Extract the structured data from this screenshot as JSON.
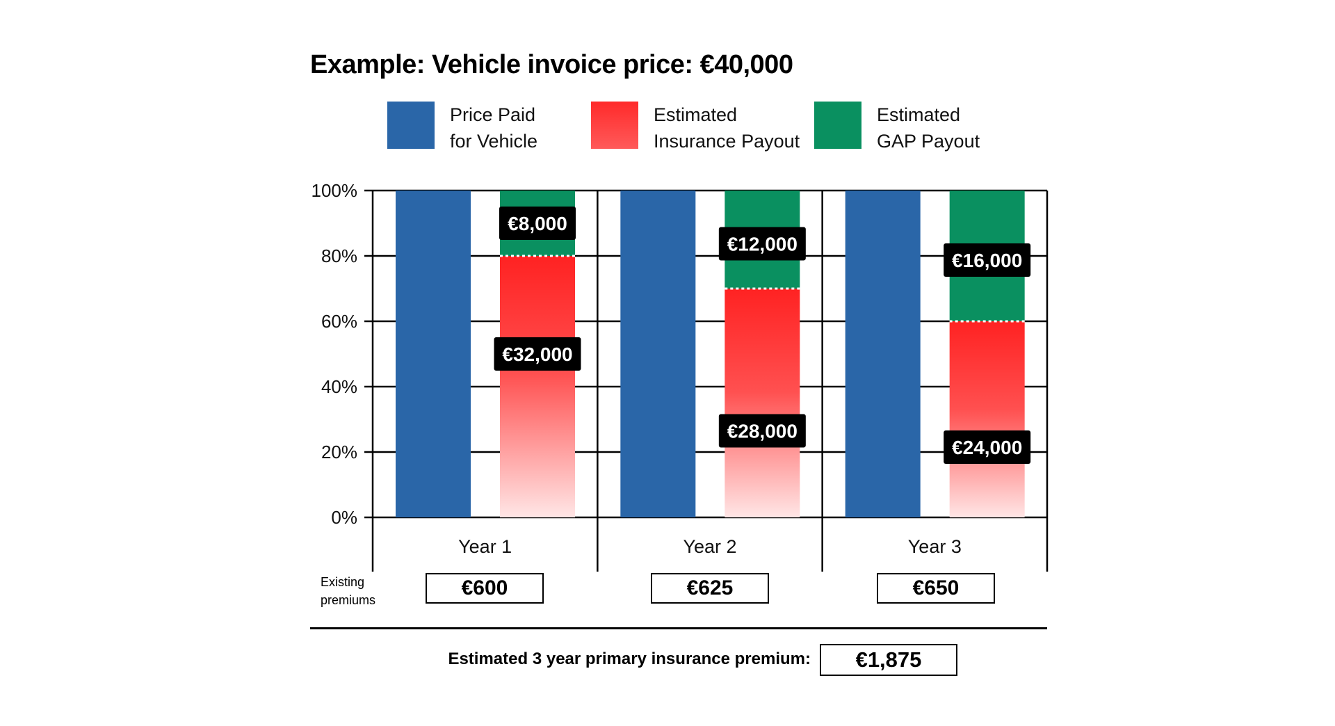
{
  "colors": {
    "price_paid": "#2a66a8",
    "insurance": "#ff2a2a",
    "gap": "#0a9060",
    "label_bg": "#000000",
    "label_text": "#ffffff"
  },
  "chart_data": {
    "type": "bar",
    "title": "Example: Vehicle invoice price: €40,000",
    "categories": [
      "Year 1",
      "Year 2",
      "Year 3"
    ],
    "y_ticks": [
      "0%",
      "20%",
      "40%",
      "60%",
      "80%",
      "100%"
    ],
    "ylim": [
      0,
      100
    ],
    "grid": true,
    "legend_placement": "top",
    "series": [
      {
        "name": "Price Paid\nfor Vehicle",
        "values": [
          100,
          100,
          100
        ]
      },
      {
        "name": "Estimated\nInsurance Payout",
        "values": [
          80,
          70,
          60
        ],
        "labels": [
          "€32,000",
          "€28,000",
          "€24,000"
        ]
      },
      {
        "name": "Estimated\nGAP Payout",
        "values": [
          20,
          30,
          40
        ],
        "labels": [
          "€8,000",
          "€12,000",
          "€16,000"
        ]
      }
    ]
  },
  "premiums": {
    "label": "Existing\npremiums",
    "values": [
      "€600",
      "€625",
      "€650"
    ]
  },
  "total": {
    "label": "Estimated 3 year primary insurance premium:",
    "value": "€1,875"
  }
}
